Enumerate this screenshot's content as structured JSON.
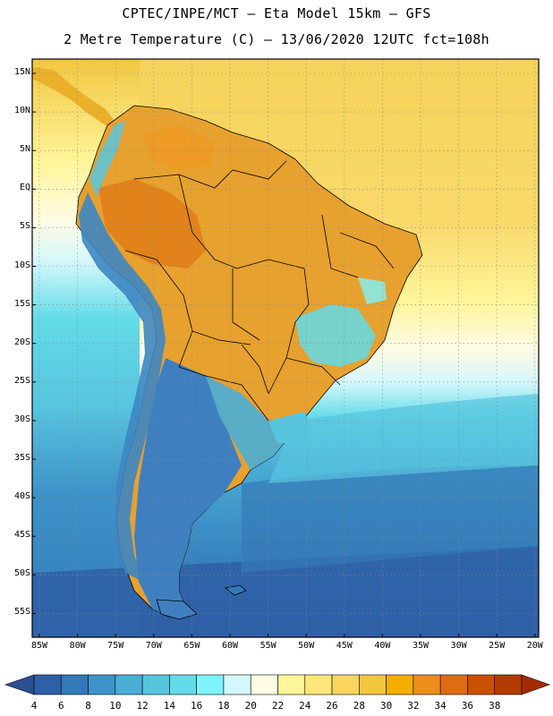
{
  "title": {
    "line1": "CPTEC/INPE/MCT –  Eta Model 15km – GFS",
    "line2": "2 Metre Temperature (C) – 13/06/2020 12UTC fct=108h"
  },
  "lat_labels": [
    "15N",
    "10N",
    "5N",
    "EQ",
    "5S",
    "10S",
    "15S",
    "20S",
    "25S",
    "30S",
    "35S",
    "40S",
    "45S",
    "50S",
    "55S"
  ],
  "lon_labels": [
    "85W",
    "80W",
    "75W",
    "70W",
    "65W",
    "60W",
    "55W",
    "50W",
    "45W",
    "40W",
    "35W",
    "30W",
    "25W",
    "20W"
  ],
  "colorbar": {
    "labels": [
      "4",
      "6",
      "8",
      "10",
      "12",
      "14",
      "16",
      "18",
      "20",
      "22",
      "24",
      "26",
      "28",
      "30",
      "32",
      "34",
      "36",
      "38"
    ],
    "colors": [
      "#2f5fa6",
      "#3479b7",
      "#3d93c9",
      "#4aaed7",
      "#58c5df",
      "#63dbe8",
      "#7ff3fa",
      "#d4f7fb",
      "#fffbe4",
      "#fff59a",
      "#ffe679",
      "#f8d65e",
      "#f1c740",
      "#f3af00",
      "#eb8e1b",
      "#e06c12",
      "#c95002",
      "#b33a00"
    ],
    "under_color": "#2a5090",
    "over_color": "#a32c00"
  },
  "map": {
    "land_base_color": "#e7a12f",
    "andes_color": "#3d86c2",
    "patagonia_color": "#3f7fc0",
    "ocean_bg_color": "#f5d55e"
  }
}
